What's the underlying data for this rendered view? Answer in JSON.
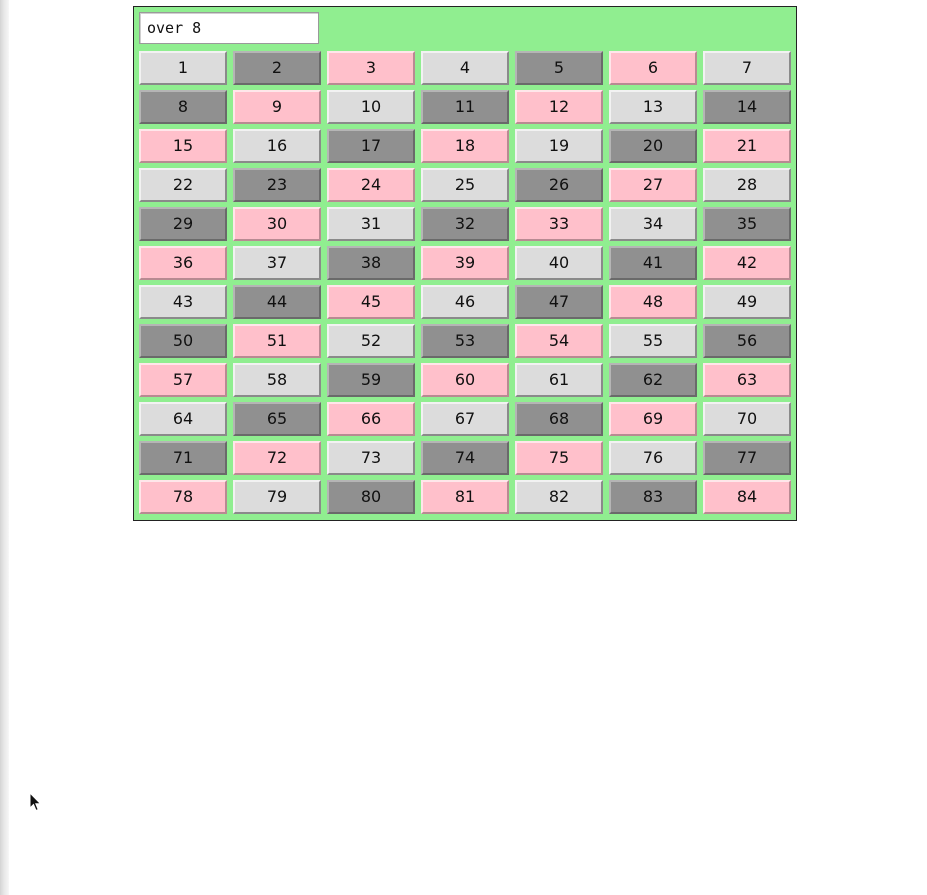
{
  "display": {
    "value": "over 8"
  },
  "colors": {
    "panel_bg": "#90ee90",
    "cell_light": "#dcdcdc",
    "cell_dark": "#909090",
    "cell_pink": "#ffc0cb"
  },
  "grid": {
    "columns": 7,
    "cells": [
      {
        "label": "1",
        "style": "light"
      },
      {
        "label": "2",
        "style": "dark"
      },
      {
        "label": "3",
        "style": "pink"
      },
      {
        "label": "4",
        "style": "light"
      },
      {
        "label": "5",
        "style": "dark"
      },
      {
        "label": "6",
        "style": "pink"
      },
      {
        "label": "7",
        "style": "light"
      },
      {
        "label": "8",
        "style": "dark"
      },
      {
        "label": "9",
        "style": "pink"
      },
      {
        "label": "10",
        "style": "light"
      },
      {
        "label": "11",
        "style": "dark"
      },
      {
        "label": "12",
        "style": "pink"
      },
      {
        "label": "13",
        "style": "light"
      },
      {
        "label": "14",
        "style": "dark"
      },
      {
        "label": "15",
        "style": "pink"
      },
      {
        "label": "16",
        "style": "light"
      },
      {
        "label": "17",
        "style": "dark"
      },
      {
        "label": "18",
        "style": "pink"
      },
      {
        "label": "19",
        "style": "light"
      },
      {
        "label": "20",
        "style": "dark"
      },
      {
        "label": "21",
        "style": "pink"
      },
      {
        "label": "22",
        "style": "light"
      },
      {
        "label": "23",
        "style": "dark"
      },
      {
        "label": "24",
        "style": "pink"
      },
      {
        "label": "25",
        "style": "light"
      },
      {
        "label": "26",
        "style": "dark"
      },
      {
        "label": "27",
        "style": "pink"
      },
      {
        "label": "28",
        "style": "light"
      },
      {
        "label": "29",
        "style": "dark"
      },
      {
        "label": "30",
        "style": "pink"
      },
      {
        "label": "31",
        "style": "light"
      },
      {
        "label": "32",
        "style": "dark"
      },
      {
        "label": "33",
        "style": "pink"
      },
      {
        "label": "34",
        "style": "light"
      },
      {
        "label": "35",
        "style": "dark"
      },
      {
        "label": "36",
        "style": "pink"
      },
      {
        "label": "37",
        "style": "light"
      },
      {
        "label": "38",
        "style": "dark"
      },
      {
        "label": "39",
        "style": "pink"
      },
      {
        "label": "40",
        "style": "light"
      },
      {
        "label": "41",
        "style": "dark"
      },
      {
        "label": "42",
        "style": "pink"
      },
      {
        "label": "43",
        "style": "light"
      },
      {
        "label": "44",
        "style": "dark"
      },
      {
        "label": "45",
        "style": "pink"
      },
      {
        "label": "46",
        "style": "light"
      },
      {
        "label": "47",
        "style": "dark"
      },
      {
        "label": "48",
        "style": "pink"
      },
      {
        "label": "49",
        "style": "light"
      },
      {
        "label": "50",
        "style": "dark"
      },
      {
        "label": "51",
        "style": "pink"
      },
      {
        "label": "52",
        "style": "light"
      },
      {
        "label": "53",
        "style": "dark"
      },
      {
        "label": "54",
        "style": "pink"
      },
      {
        "label": "55",
        "style": "light"
      },
      {
        "label": "56",
        "style": "dark"
      },
      {
        "label": "57",
        "style": "pink"
      },
      {
        "label": "58",
        "style": "light"
      },
      {
        "label": "59",
        "style": "dark"
      },
      {
        "label": "60",
        "style": "pink"
      },
      {
        "label": "61",
        "style": "light"
      },
      {
        "label": "62",
        "style": "dark"
      },
      {
        "label": "63",
        "style": "pink"
      },
      {
        "label": "64",
        "style": "light"
      },
      {
        "label": "65",
        "style": "dark"
      },
      {
        "label": "66",
        "style": "pink"
      },
      {
        "label": "67",
        "style": "light"
      },
      {
        "label": "68",
        "style": "dark"
      },
      {
        "label": "69",
        "style": "pink"
      },
      {
        "label": "70",
        "style": "light"
      },
      {
        "label": "71",
        "style": "dark"
      },
      {
        "label": "72",
        "style": "pink"
      },
      {
        "label": "73",
        "style": "light"
      },
      {
        "label": "74",
        "style": "dark"
      },
      {
        "label": "75",
        "style": "pink"
      },
      {
        "label": "76",
        "style": "light"
      },
      {
        "label": "77",
        "style": "dark"
      },
      {
        "label": "78",
        "style": "pink"
      },
      {
        "label": "79",
        "style": "light"
      },
      {
        "label": "80",
        "style": "dark"
      },
      {
        "label": "81",
        "style": "pink"
      },
      {
        "label": "82",
        "style": "light"
      },
      {
        "label": "83",
        "style": "dark"
      },
      {
        "label": "84",
        "style": "pink"
      }
    ]
  },
  "cursor": {
    "icon": "mouse-pointer-icon"
  }
}
